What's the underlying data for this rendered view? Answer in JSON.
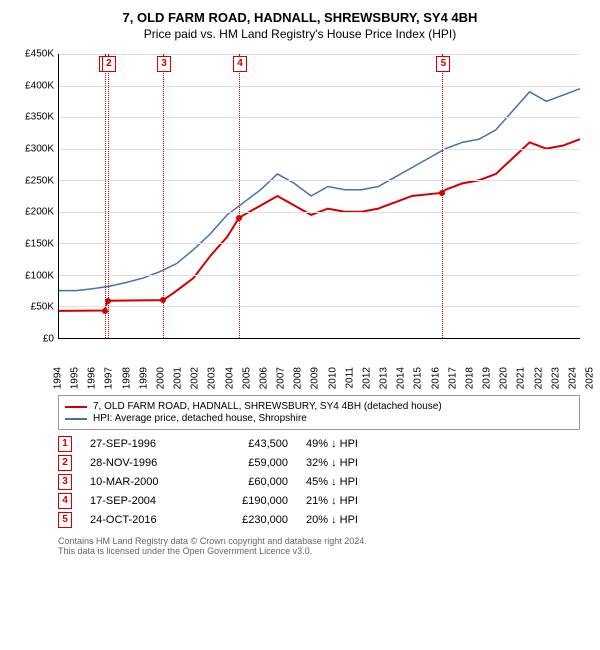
{
  "title": "7, OLD FARM ROAD, HADNALL, SHREWSBURY, SY4 4BH",
  "subtitle": "Price paid vs. HM Land Registry's House Price Index (HPI)",
  "chart": {
    "type": "line",
    "background_color": "#ffffff",
    "grid_color": "#e0e0e0",
    "axis_color": "#000000",
    "ylim": [
      0,
      450000
    ],
    "ytick_step": 50000,
    "ytick_labels": [
      "£0",
      "£50K",
      "£100K",
      "£150K",
      "£200K",
      "£250K",
      "£300K",
      "£350K",
      "£400K",
      "£450K"
    ],
    "xlim": [
      1994,
      2025
    ],
    "xtick_step": 1,
    "xtick_labels": [
      "1994",
      "1995",
      "1996",
      "1997",
      "1998",
      "1999",
      "2000",
      "2001",
      "2002",
      "2003",
      "2004",
      "2005",
      "2006",
      "2007",
      "2008",
      "2009",
      "2010",
      "2011",
      "2012",
      "2013",
      "2014",
      "2015",
      "2016",
      "2017",
      "2018",
      "2019",
      "2020",
      "2021",
      "2022",
      "2023",
      "2024",
      "2025"
    ],
    "label_fontsize": 10,
    "series": [
      {
        "name": "price_paid",
        "color": "#d00000",
        "line_width": 2,
        "points": [
          [
            1994,
            43000
          ],
          [
            1996.7,
            43500
          ],
          [
            1996.9,
            59000
          ],
          [
            2000.2,
            60000
          ],
          [
            2001,
            75000
          ],
          [
            2002,
            95000
          ],
          [
            2003,
            130000
          ],
          [
            2004,
            160000
          ],
          [
            2004.7,
            190000
          ],
          [
            2005,
            195000
          ],
          [
            2006,
            210000
          ],
          [
            2007,
            225000
          ],
          [
            2008,
            210000
          ],
          [
            2009,
            195000
          ],
          [
            2010,
            205000
          ],
          [
            2011,
            200000
          ],
          [
            2012,
            200000
          ],
          [
            2013,
            205000
          ],
          [
            2014,
            215000
          ],
          [
            2015,
            225000
          ],
          [
            2016.8,
            230000
          ],
          [
            2017,
            235000
          ],
          [
            2018,
            245000
          ],
          [
            2019,
            250000
          ],
          [
            2020,
            260000
          ],
          [
            2021,
            285000
          ],
          [
            2022,
            310000
          ],
          [
            2023,
            300000
          ],
          [
            2024,
            305000
          ],
          [
            2025,
            315000
          ]
        ]
      },
      {
        "name": "hpi",
        "color": "#4a6fa5",
        "line_width": 1.5,
        "points": [
          [
            1994,
            75000
          ],
          [
            1995,
            75000
          ],
          [
            1996,
            78000
          ],
          [
            1997,
            82000
          ],
          [
            1998,
            88000
          ],
          [
            1999,
            95000
          ],
          [
            2000,
            105000
          ],
          [
            2001,
            118000
          ],
          [
            2002,
            140000
          ],
          [
            2003,
            165000
          ],
          [
            2004,
            195000
          ],
          [
            2005,
            215000
          ],
          [
            2006,
            235000
          ],
          [
            2007,
            260000
          ],
          [
            2008,
            245000
          ],
          [
            2009,
            225000
          ],
          [
            2010,
            240000
          ],
          [
            2011,
            235000
          ],
          [
            2012,
            235000
          ],
          [
            2013,
            240000
          ],
          [
            2014,
            255000
          ],
          [
            2015,
            270000
          ],
          [
            2016,
            285000
          ],
          [
            2017,
            300000
          ],
          [
            2018,
            310000
          ],
          [
            2019,
            315000
          ],
          [
            2020,
            330000
          ],
          [
            2021,
            360000
          ],
          [
            2022,
            390000
          ],
          [
            2023,
            375000
          ],
          [
            2024,
            385000
          ],
          [
            2025,
            395000
          ]
        ]
      }
    ],
    "markers": [
      {
        "n": "1",
        "x": 1996.74,
        "y": 43500
      },
      {
        "n": "2",
        "x": 1996.91,
        "y": 59000
      },
      {
        "n": "3",
        "x": 2000.19,
        "y": 60000
      },
      {
        "n": "4",
        "x": 2004.71,
        "y": 190000
      },
      {
        "n": "5",
        "x": 2016.81,
        "y": 230000
      }
    ],
    "marker_color": "#d00000"
  },
  "legend": {
    "items": [
      {
        "color": "#d00000",
        "label": "7, OLD FARM ROAD, HADNALL, SHREWSBURY, SY4 4BH (detached house)"
      },
      {
        "color": "#4a6fa5",
        "label": "HPI: Average price, detached house, Shropshire"
      }
    ]
  },
  "transactions": [
    {
      "n": "1",
      "date": "27-SEP-1996",
      "price": "£43,500",
      "diff": "49% ↓ HPI"
    },
    {
      "n": "2",
      "date": "28-NOV-1996",
      "price": "£59,000",
      "diff": "32% ↓ HPI"
    },
    {
      "n": "3",
      "date": "10-MAR-2000",
      "price": "£60,000",
      "diff": "45% ↓ HPI"
    },
    {
      "n": "4",
      "date": "17-SEP-2004",
      "price": "£190,000",
      "diff": "21% ↓ HPI"
    },
    {
      "n": "5",
      "date": "24-OCT-2016",
      "price": "£230,000",
      "diff": "20% ↓ HPI"
    }
  ],
  "footer_line1": "Contains HM Land Registry data © Crown copyright and database right 2024.",
  "footer_line2": "This data is licensed under the Open Government Licence v3.0."
}
